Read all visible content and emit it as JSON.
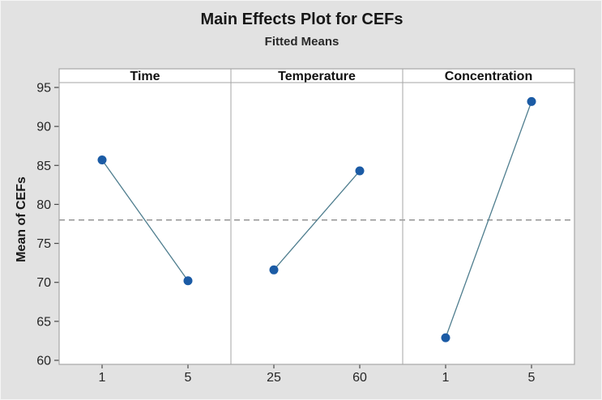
{
  "chart_data": {
    "type": "line",
    "title": "Main Effects Plot for CEFs",
    "subtitle": "Fitted Means",
    "ylabel": "Mean of CEFs",
    "xlabel": "",
    "ylim": [
      60,
      95
    ],
    "yticks": [
      60,
      65,
      70,
      75,
      80,
      85,
      90,
      95
    ],
    "reference_line": 78,
    "grid": false,
    "legend": "none",
    "panels": [
      {
        "label": "Time",
        "categories": [
          "1",
          "5"
        ],
        "values": [
          85.7,
          70.2
        ]
      },
      {
        "label": "Temperature",
        "categories": [
          "25",
          "60"
        ],
        "values": [
          71.6,
          84.3
        ]
      },
      {
        "label": "Concentration",
        "categories": [
          "1",
          "5"
        ],
        "values": [
          62.9,
          93.2
        ]
      }
    ],
    "colors": {
      "background": "#e2e2e2",
      "plot_background": "#ffffff",
      "panel_border": "#a6a6a6",
      "point": "#1b5ba5",
      "line": "#4e7d8e",
      "reference": "#8c8c8c",
      "tick": "#4a4a4a",
      "text": "#262626"
    }
  }
}
